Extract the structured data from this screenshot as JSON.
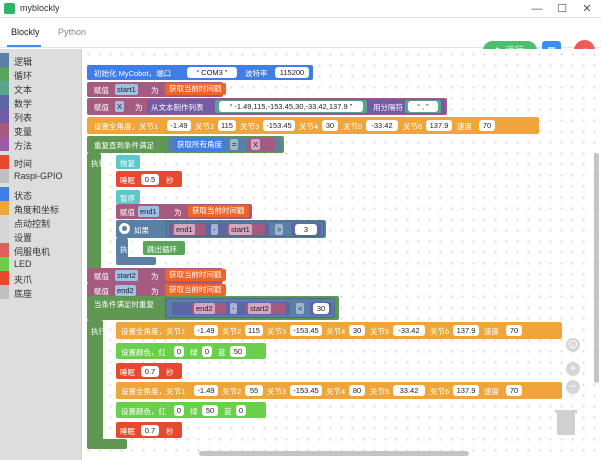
{
  "window": {
    "title": "myblockly",
    "minimize": "—",
    "maximize": "☐",
    "close": "✕"
  },
  "tabs": [
    {
      "label": "Blockly"
    },
    {
      "label": "Python"
    }
  ],
  "toolbar": {
    "run_label": "运行",
    "grid_icon": "▦",
    "back_icon": "‹"
  },
  "colors": {
    "accent": "#3c8ef0",
    "run": "#4bbf6b",
    "back": "#f05a5a",
    "block_blue": "#3f7ee8",
    "block_red": "#e8482e",
    "block_orange": "#f0a53a",
    "block_green": "#68a84f",
    "block_loop": "#5f9852",
    "block_logic": "#5b80a5",
    "block_text": "#5ba58c",
    "block_var": "#a55b80"
  },
  "toolbox": [
    {
      "label": "逻辑",
      "color": "#5b80a5"
    },
    {
      "label": "循环",
      "color": "#5ba55b"
    },
    {
      "label": "文本",
      "color": "#5ba58c"
    },
    {
      "label": "数学",
      "color": "#5b67a5"
    },
    {
      "label": "列表",
      "color": "#745ba5"
    },
    {
      "label": "变量",
      "color": "#a55b80"
    },
    {
      "label": "方法",
      "color": "#995ba5"
    },
    {
      "label": "时间",
      "color": "#e8482e"
    },
    {
      "label": "Raspi-GPIO",
      "color": "#c0c0c0"
    },
    {
      "label": "状态",
      "color": "#3f7ee8"
    },
    {
      "label": "角度和坐标",
      "color": "#f0a53a"
    },
    {
      "label": "点动控制",
      "color": "#d6d6d6"
    },
    {
      "label": "设置",
      "color": "#d6d6d6"
    },
    {
      "label": "伺服电机",
      "color": "#e06060"
    },
    {
      "label": "LED",
      "color": "#6ad04b"
    },
    {
      "label": "夹爪",
      "color": "#e8482e"
    },
    {
      "label": "底座",
      "color": "#c0c0c0"
    }
  ],
  "blocks": {
    "init": {
      "label": "初始化 MyCobot，端口",
      "port": "COM3",
      "baud_label": "波特率",
      "baud": "115200"
    },
    "assign_start1": {
      "label": "赋值",
      "var": "start1",
      "to": "为",
      "get": "获取当前时间戳"
    },
    "assign_x": {
      "label": "赋值",
      "var": "X",
      "to": "为",
      "list_from_text": "从文本制作列表",
      "text": "-1.49,115,-153.45,30,-33.42,137.9",
      "sep_label": "用分隔符",
      "sep": ","
    },
    "set_angles1": {
      "label": "设置全角度，关节1",
      "j1": "-1.49",
      "j2_label": "关节2",
      "j2": "115",
      "j3_label": "关节3",
      "j3": "-153.45",
      "j4_label": "关节4",
      "j4": "30",
      "j5_label": "关节5",
      "j5": "-33.42",
      "j6_label": "关节6",
      "j6": "137.9",
      "speed_label": "速度",
      "speed": "70"
    },
    "repeat_until": {
      "label": "重复直到条件满足",
      "get_all": "获取所有角度",
      "op": "=",
      "var": "X",
      "do": "执行"
    },
    "resume": {
      "label": "恢复"
    },
    "sleep1": {
      "label": "睡眠",
      "value": "0.5",
      "unit": "秒"
    },
    "pause": {
      "label": "暂停"
    },
    "assign_end1": {
      "label": "赋值",
      "var": "end1",
      "to": "为",
      "get": "获取当前时间戳"
    },
    "if_block": {
      "if_label": "如果",
      "a": "end1",
      "minus": "-",
      "b": "start1",
      "op": ">",
      "value": "3",
      "do": "执行",
      "break": "跳出循环"
    },
    "assign_start2": {
      "label": "赋值",
      "var": "start2",
      "to": "为",
      "get": "获取当前时间戳"
    },
    "assign_end2": {
      "label": "赋值",
      "var": "end2",
      "to": "为",
      "get": "获取当前时间戳"
    },
    "while_block": {
      "label": "当条件满足时重复",
      "a": "end2",
      "minus": "-",
      "b": "start2",
      "op": "<",
      "value": "30",
      "do": "执行"
    },
    "set_angles2": {
      "label": "设置全角度，关节1",
      "j1": "-1.49",
      "j2_label": "关节2",
      "j2": "115",
      "j3_label": "关节3",
      "j3": "-153.45",
      "j4_label": "关节4",
      "j4": "30",
      "j5_label": "关节5",
      "j5": "-33.42",
      "j6_label": "关节6",
      "j6": "137.9",
      "speed_label": "速度",
      "speed": "70"
    },
    "set_color1": {
      "label": "设置颜色，红",
      "r": "0",
      "g_label": "绿",
      "g": "0",
      "b_label": "蓝",
      "b": "50"
    },
    "sleep2": {
      "label": "睡眠",
      "value": "0.7",
      "unit": "秒"
    },
    "set_angles3": {
      "label": "设置全角度，关节1",
      "j1": "-1.49",
      "j2_label": "关节2",
      "j2": "55",
      "j3_label": "关节3",
      "j3": "-153.45",
      "j4_label": "关节4",
      "j4": "80",
      "j5_label": "关节5",
      "j5": "33.42",
      "j6_label": "关节6",
      "j6": "137.9",
      "speed_label": "速度",
      "speed": "70"
    },
    "set_color2": {
      "label": "设置颜色，红",
      "r": "0",
      "g_label": "绿",
      "g": "50",
      "b_label": "蓝",
      "b": "0"
    },
    "sleep3": {
      "label": "睡眠",
      "value": "0.7",
      "unit": "秒"
    }
  },
  "workspace": {
    "zoom_in": "+",
    "zoom_out": "−",
    "center_icon": "⊙"
  }
}
